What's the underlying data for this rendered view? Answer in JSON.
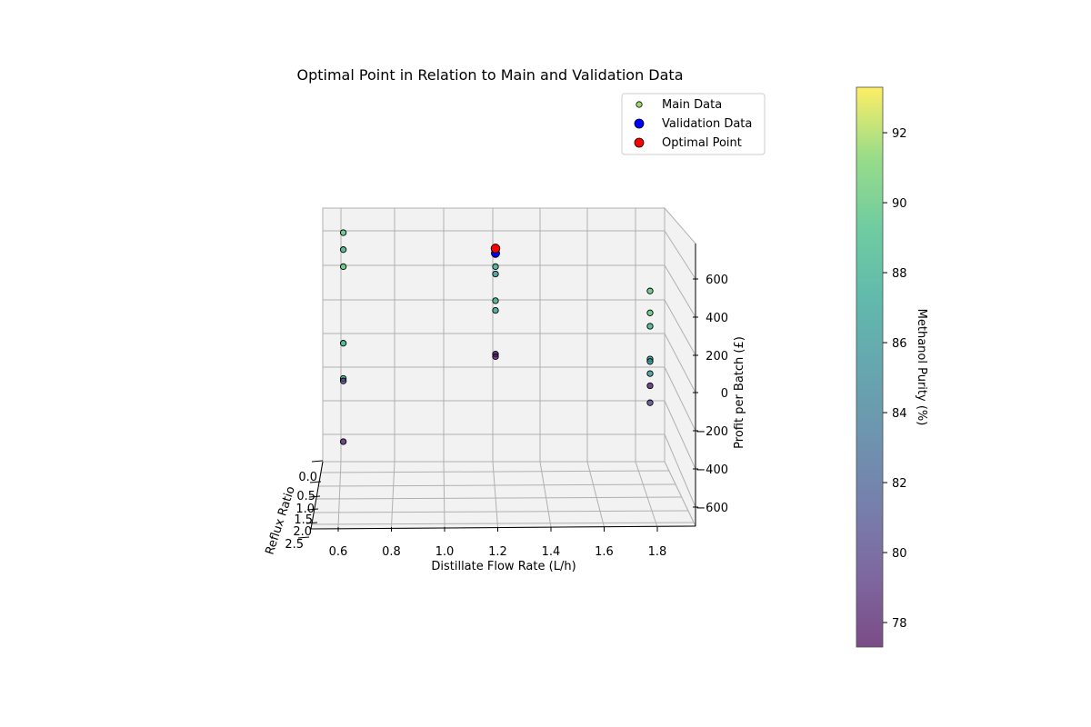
{
  "colors": {
    "pane_fill": "#f2f2f2",
    "grid": "#b0b0b0",
    "validation": "#0000ff",
    "optimal": "#ff0000",
    "marker_edge": "#000000"
  },
  "chart_data": {
    "type": "scatter",
    "projection": "3d",
    "title": "Optimal Point in Relation to Main and Validation Data",
    "xlabel": "Distillate Flow Rate (L/h)",
    "ylabel": "Reflux Ratio",
    "zlabel": "Profit per Batch (£)",
    "xticks": [
      "0.6",
      "0.8",
      "1.0",
      "1.2",
      "1.4",
      "1.6",
      "1.8"
    ],
    "yticks": [
      "0.0",
      "0.5",
      "1.0",
      "1.5",
      "2.0",
      "2.5"
    ],
    "zticks": [
      "−600",
      "−400",
      "−200",
      "0",
      "200",
      "400",
      "600"
    ],
    "grid": true,
    "legend_position": "upper right",
    "legend": [
      {
        "label": "Main Data",
        "marker": "small circle colored by purity"
      },
      {
        "label": "Validation Data",
        "color": "#0000ff"
      },
      {
        "label": "Optimal Point",
        "color": "#ff0000"
      }
    ],
    "colorbar": {
      "label": "Methanol Purity (%)",
      "colormap": "viridis",
      "range": [
        77.3,
        93.3
      ],
      "ticks": [
        "78",
        "80",
        "82",
        "84",
        "86",
        "88",
        "90",
        "92"
      ]
    },
    "series": [
      {
        "name": "Main Data",
        "points": [
          {
            "x": 0.62,
            "y": 2.0,
            "z": 730,
            "purity": 90
          },
          {
            "x": 0.62,
            "y": 2.0,
            "z": 590,
            "purity": 90
          },
          {
            "x": 0.62,
            "y": 2.0,
            "z": 660,
            "purity": 88
          },
          {
            "x": 0.62,
            "y": 2.0,
            "z": 275,
            "purity": 88
          },
          {
            "x": 0.62,
            "y": 2.0,
            "z": 130,
            "purity": 88
          },
          {
            "x": 0.62,
            "y": 2.0,
            "z": 120,
            "purity": 80
          },
          {
            "x": 0.62,
            "y": 2.0,
            "z": -130,
            "purity": 78
          },
          {
            "x": 1.2,
            "y": 1.0,
            "z": 670,
            "purity": 90
          },
          {
            "x": 1.2,
            "y": 1.0,
            "z": 640,
            "purity": 92
          },
          {
            "x": 1.2,
            "y": 1.0,
            "z": 590,
            "purity": 88
          },
          {
            "x": 1.2,
            "y": 1.0,
            "z": 560,
            "purity": 86
          },
          {
            "x": 1.2,
            "y": 1.0,
            "z": 450,
            "purity": 88
          },
          {
            "x": 1.2,
            "y": 1.0,
            "z": 410,
            "purity": 87
          },
          {
            "x": 1.2,
            "y": 1.0,
            "z": 230,
            "purity": 78
          },
          {
            "x": 1.2,
            "y": 1.0,
            "z": 220,
            "purity": 78
          },
          {
            "x": 1.8,
            "y": 0.5,
            "z": 490,
            "purity": 90
          },
          {
            "x": 1.8,
            "y": 0.5,
            "z": 400,
            "purity": 90
          },
          {
            "x": 1.8,
            "y": 0.5,
            "z": 345,
            "purity": 88
          },
          {
            "x": 1.8,
            "y": 0.5,
            "z": 210,
            "purity": 87
          },
          {
            "x": 1.8,
            "y": 0.5,
            "z": 200,
            "purity": 86
          },
          {
            "x": 1.8,
            "y": 0.5,
            "z": 150,
            "purity": 86
          },
          {
            "x": 1.8,
            "y": 0.5,
            "z": 100,
            "purity": 78
          },
          {
            "x": 1.8,
            "y": 0.5,
            "z": 30,
            "purity": 80
          }
        ]
      },
      {
        "name": "Validation Data",
        "points": [
          {
            "x": 1.2,
            "y": 1.0,
            "z": 645
          }
        ]
      },
      {
        "name": "Optimal Point",
        "points": [
          {
            "x": 1.2,
            "y": 1.0,
            "z": 665
          }
        ]
      }
    ]
  }
}
